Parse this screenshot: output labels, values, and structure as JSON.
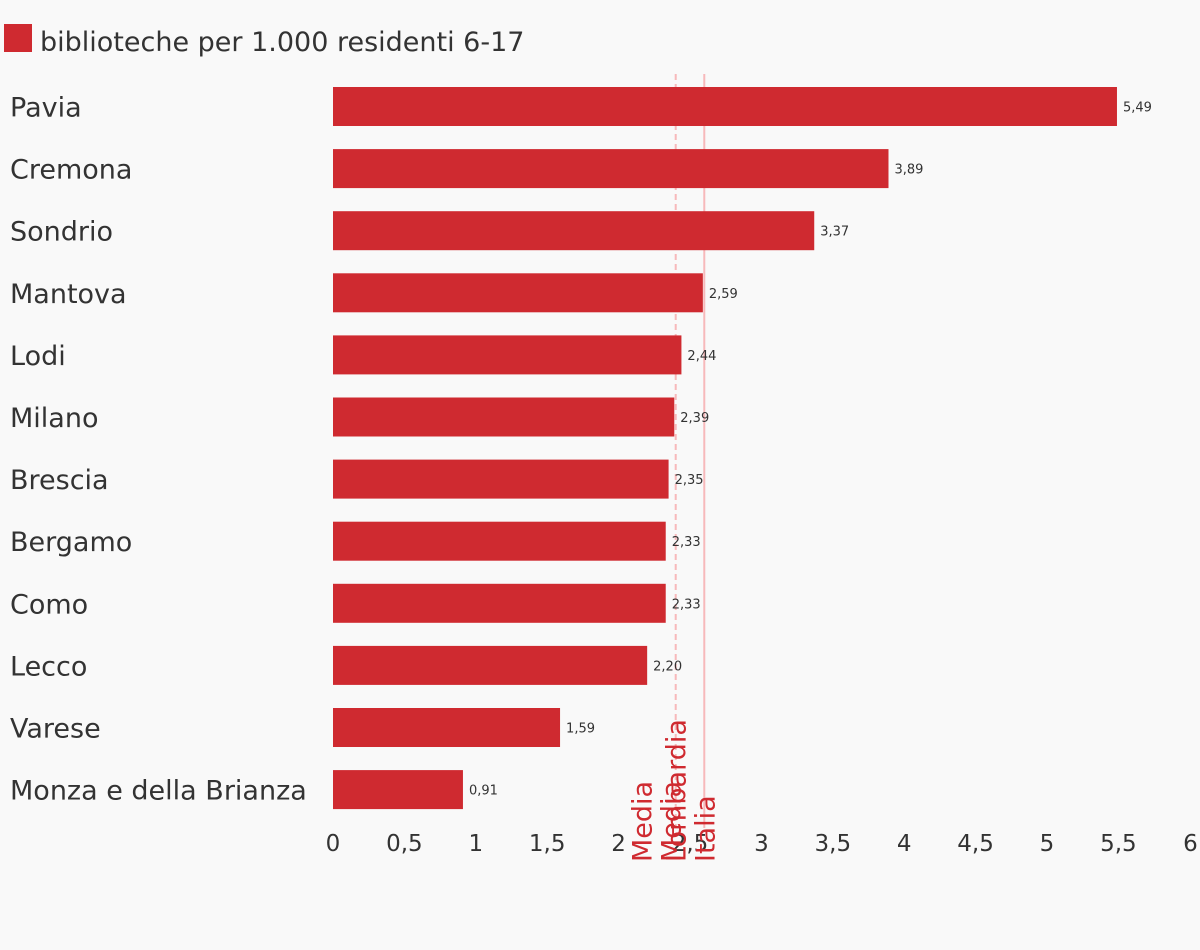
{
  "chart_data": {
    "type": "bar",
    "orientation": "horizontal",
    "categories": [
      "Pavia",
      "Cremona",
      "Sondrio",
      "Mantova",
      "Lodi",
      "Milano",
      "Brescia",
      "Bergamo",
      "Como",
      "Lecco",
      "Varese",
      "Monza e della Brianza"
    ],
    "series": [
      {
        "name": "biblioteche per 1.000 residenti 6-17",
        "values": [
          5.49,
          3.89,
          3.37,
          2.59,
          2.44,
          2.39,
          2.35,
          2.33,
          2.33,
          2.2,
          1.59,
          0.91
        ],
        "labels": [
          "5,49",
          "3,89",
          "3,37",
          "2,59",
          "2,44",
          "2,39",
          "2,35",
          "2,33",
          "2,33",
          "2,20",
          "1,59",
          "0,91"
        ]
      }
    ],
    "xlim": [
      0,
      6
    ],
    "ticks": [
      0,
      0.5,
      1,
      1.5,
      2,
      2.5,
      3,
      3.5,
      4,
      4.5,
      5,
      5.5,
      6
    ],
    "tick_labels": [
      "0",
      "0,5",
      "1",
      "1,5",
      "2",
      "2,5",
      "3",
      "3,5",
      "4",
      "4,5",
      "5",
      "5,5",
      "6"
    ],
    "reference_lines": [
      {
        "label_line1": "Media",
        "label_line2": "Lombardia",
        "value": 2.4,
        "style": "dashed"
      },
      {
        "label_line1": "Media",
        "label_line2": "Italia",
        "value": 2.6,
        "style": "solid"
      }
    ],
    "legend_position": "top-left",
    "grid": false
  },
  "colors": {
    "bar": "#cf2a30",
    "ref_line": "#f7b9bb",
    "ref_text": "#cf2a30",
    "background": "#f9f9f9",
    "text": "#333333"
  }
}
